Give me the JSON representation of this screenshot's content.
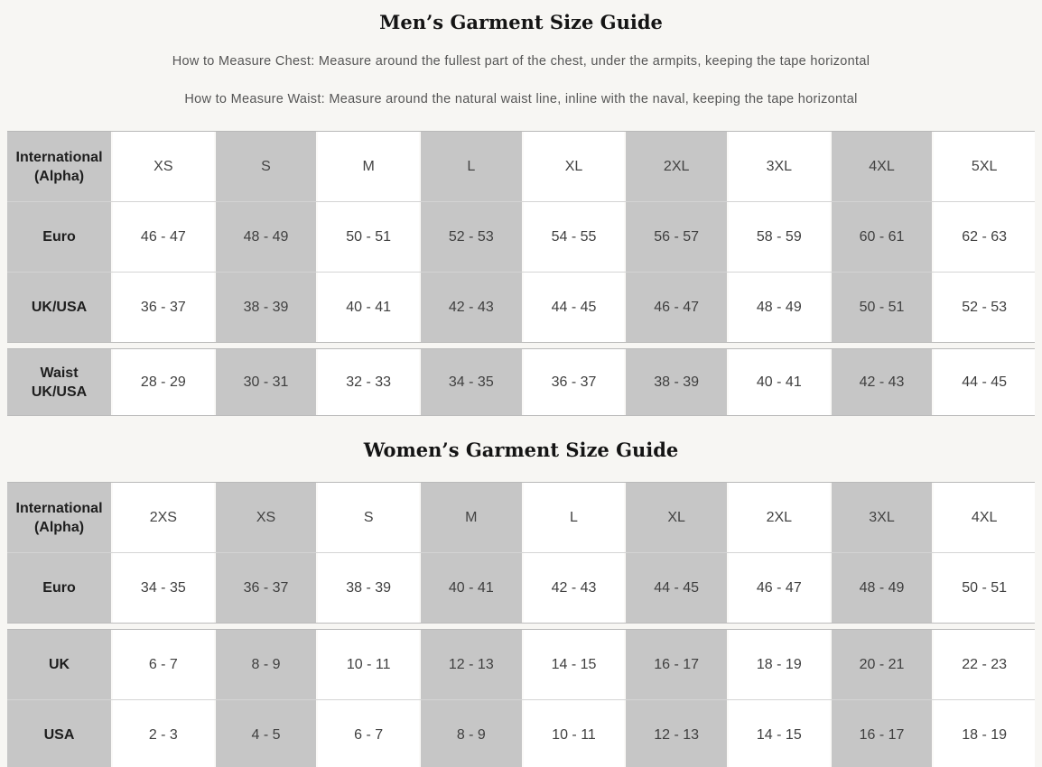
{
  "mens": {
    "title": "Men’s Garment Size Guide",
    "instructions": [
      "How to Measure Chest: Measure around the fullest part of the chest, under the armpits, keeping the tape horizontal",
      "How to Measure Waist: Measure around the natural waist line, inline with the naval, keeping the tape horizontal"
    ],
    "table": {
      "groups": [
        [
          {
            "header": true,
            "label": "International (Alpha)",
            "values": [
              "XS",
              "S",
              "M",
              "L",
              "XL",
              "2XL",
              "3XL",
              "4XL",
              "5XL"
            ]
          },
          {
            "label": "Euro",
            "values": [
              "46 - 47",
              "48 - 49",
              "50 - 51",
              "52 - 53",
              "54 - 55",
              "56 - 57",
              "58 - 59",
              "60 - 61",
              "62 - 63"
            ]
          },
          {
            "label": "UK/USA",
            "values": [
              "36 - 37",
              "38 - 39",
              "40 - 41",
              "42 - 43",
              "44 - 45",
              "46 - 47",
              "48 - 49",
              "50 - 51",
              "52 - 53"
            ]
          }
        ],
        [
          {
            "label": "Waist UK/USA",
            "short": true,
            "values": [
              "28 - 29",
              "30 - 31",
              "32 - 33",
              "34 - 35",
              "36 - 37",
              "38 - 39",
              "40 - 41",
              "42 - 43",
              "44 - 45"
            ]
          }
        ]
      ]
    }
  },
  "womens": {
    "title": "Women’s Garment Size Guide",
    "table": {
      "groups": [
        [
          {
            "header": true,
            "label": "International (Alpha)",
            "values": [
              "2XS",
              "XS",
              "S",
              "M",
              "L",
              "XL",
              "2XL",
              "3XL",
              "4XL"
            ]
          },
          {
            "label": "Euro",
            "values": [
              "34 - 35",
              "36 - 37",
              "38 - 39",
              "40 - 41",
              "42 - 43",
              "44 - 45",
              "46 - 47",
              "48 - 49",
              "50 - 51"
            ]
          }
        ],
        [
          {
            "label": "UK",
            "values": [
              "6 - 7",
              "8 - 9",
              "10 - 11",
              "12 - 13",
              "14 - 15",
              "16 - 17",
              "18 - 19",
              "20 - 21",
              "22 - 23"
            ]
          },
          {
            "label": "USA",
            "values": [
              "2 - 3",
              "4 - 5",
              "6 - 7",
              "8 - 9",
              "10 - 11",
              "12 - 13",
              "14 - 15",
              "16 - 17",
              "18 - 19"
            ]
          }
        ]
      ]
    }
  },
  "colors": {
    "background": "#f7f6f3",
    "shaded_cell": "#c6c6c6",
    "title_text": "#141414",
    "instruction_text": "#565656",
    "cell_text": "#3f3f3f"
  }
}
